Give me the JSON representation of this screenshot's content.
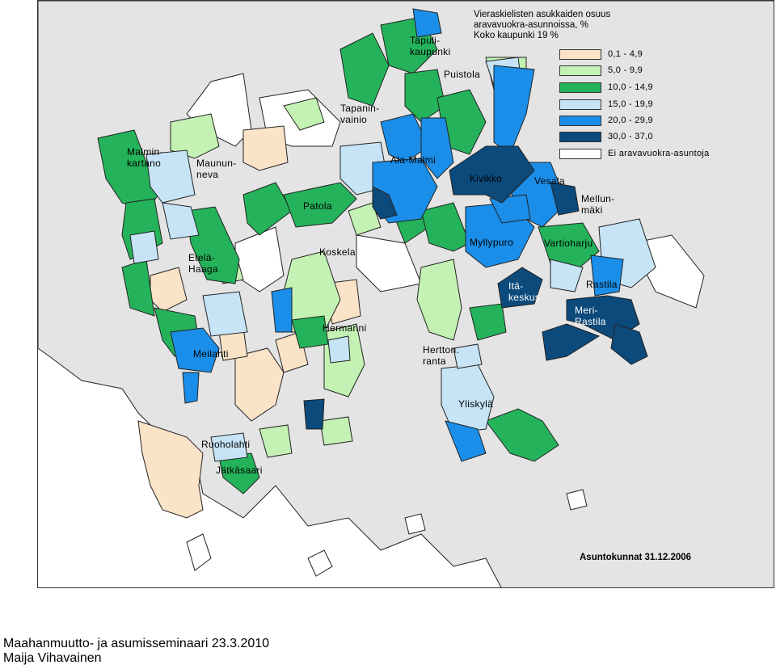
{
  "map": {
    "legend": {
      "title": "Vieraskielisten asukkaiden osuus\naravavuokra-asunnoissa, %\nKoko kaupunki 19 %",
      "items": [
        {
          "label": "0,1 - 4,9",
          "color": "#fbe3c8"
        },
        {
          "label": "5,0 - 9,9",
          "color": "#c4f2b4"
        },
        {
          "label": "10,0 - 14,9",
          "color": "#24b35a"
        },
        {
          "label": "15,0 - 19,9",
          "color": "#c6e4f6"
        },
        {
          "label": "20,0 - 29,9",
          "color": "#1a8ee8"
        },
        {
          "label": "30,0 - 37,0",
          "color": "#0c4a7c"
        },
        {
          "label": "Ei aravavuokra-asuntoja",
          "color": "#ffffff"
        }
      ]
    },
    "districts": {
      "malminkartano": "Malmin-\nkartano",
      "maunula": "Maunun-\nneva",
      "tapulikaupunki": "Tapuli-\nkaupunki",
      "puistola": "Puistola",
      "tapaninvainio": "Tapanin-\nvainio",
      "ala_malmi": "Ala-Malmi",
      "kivikko": "Kivikko",
      "vesala": "Vesala",
      "mellunmaki": "Mellun-\nmäki",
      "patola": "Patola",
      "myllypuro": "Myllypuro",
      "vartioharju": "Vartioharju",
      "etela_haaga": "Etelä-\nHaaga",
      "koskela": "Koskela",
      "itakeskus": "Itä-\nkeskus",
      "rastila": "Rastila",
      "meri_rastila": "Meri-\nRastila",
      "hermanni": "Hermanni",
      "meilahti": "Meilahti",
      "herttoniemenranta": "Hertton.\nranta",
      "yliskyla": "Yliskylä",
      "ruoholahti": "Ruoholahti",
      "jatkasaari": "Jätkäsaari"
    },
    "date_note": "Asuntokunnat 31.12.2006"
  },
  "footer": {
    "line1": "Maahanmuutto- ja asumisseminaari 23.3.2010",
    "line2": "Maija Vihavainen"
  }
}
